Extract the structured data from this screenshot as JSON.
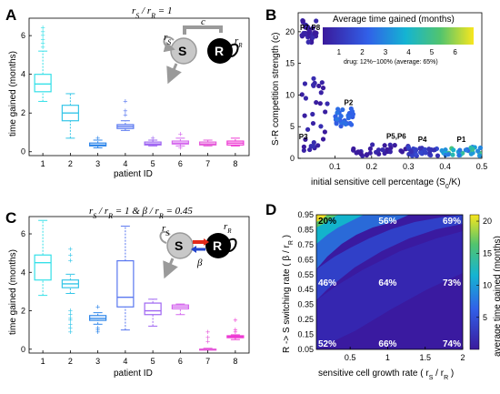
{
  "panel_letters": {
    "a": "A",
    "b": "B",
    "c": "C",
    "d": "D"
  },
  "colors": {
    "P1": "#35e0e8",
    "P2": "#35c6e8",
    "P3": "#2e86ea",
    "P4": "#5a78f0",
    "P5": "#9f66f2",
    "P6": "#d466ee",
    "P7": "#e55ad9",
    "P8": "#ee3ad3"
  },
  "chart_data": [
    {
      "type": "box",
      "panel": "A",
      "title": "r_S / r_R = 1",
      "xlabel": "patient ID",
      "ylabel": "time gained (months)",
      "categories": [
        "1",
        "2",
        "3",
        "4",
        "5",
        "6",
        "7",
        "8"
      ],
      "ylim": [
        -0.2,
        6.9
      ],
      "yticks": [
        0,
        2,
        4,
        6
      ],
      "boxes": [
        {
          "cat": "1",
          "min": 2.6,
          "q1": 3.1,
          "median": 3.5,
          "q3": 4.0,
          "max": 5.2,
          "outliers": [
            5.4,
            5.6,
            5.8,
            6.0,
            6.2,
            6.4
          ]
        },
        {
          "cat": "2",
          "min": 0.7,
          "q1": 1.6,
          "median": 2.0,
          "q3": 2.4,
          "max": 3.0,
          "outliers": []
        },
        {
          "cat": "3",
          "min": 0.2,
          "q1": 0.3,
          "median": 0.35,
          "q3": 0.45,
          "max": 0.6,
          "outliers": [
            0.7
          ]
        },
        {
          "cat": "4",
          "min": 1.1,
          "q1": 1.2,
          "median": 1.3,
          "q3": 1.4,
          "max": 1.6,
          "outliers": [
            1.9,
            2.1,
            2.6
          ]
        },
        {
          "cat": "5",
          "min": 0.3,
          "q1": 0.35,
          "median": 0.4,
          "q3": 0.5,
          "max": 0.6,
          "outliers": [
            0.7
          ]
        },
        {
          "cat": "6",
          "min": 0.3,
          "q1": 0.4,
          "median": 0.45,
          "q3": 0.55,
          "max": 0.7,
          "outliers": [
            0.2,
            0.9
          ]
        },
        {
          "cat": "7",
          "min": 0.3,
          "q1": 0.35,
          "median": 0.4,
          "q3": 0.5,
          "max": 0.6,
          "outliers": []
        },
        {
          "cat": "8",
          "min": 0.3,
          "q1": 0.35,
          "median": 0.45,
          "q3": 0.55,
          "max": 0.7,
          "outliers": []
        }
      ]
    },
    {
      "type": "scatter",
      "panel": "B",
      "xlabel": "initial sensitive cell percentage (S₀/K)",
      "ylabel": "S-R competition strength (c)",
      "xlim": [
        0,
        0.5
      ],
      "ylim": [
        0,
        23
      ],
      "xticks": [
        0.1,
        0.2,
        0.3,
        0.4,
        0.5
      ],
      "yticks": [
        0,
        5,
        10,
        15,
        20
      ],
      "colorbar": {
        "title": "Average time gained (months)",
        "ticks": [
          1,
          2,
          3,
          4,
          5,
          6
        ],
        "range": [
          0.3,
          6.8
        ]
      },
      "note": "drug: 12%~100% (average: 65%)",
      "clusters": [
        {
          "label": "P7-P8",
          "x": [
            0.01,
            0.05
          ],
          "y": [
            18,
            22
          ],
          "value": 0.4
        },
        {
          "label": "P3",
          "x": [
            0.01,
            0.08
          ],
          "y": [
            1,
            13
          ],
          "value": 0.5
        },
        {
          "label": "P2",
          "x": [
            0.1,
            0.15
          ],
          "y": [
            5,
            8
          ],
          "value": 2.4
        },
        {
          "label": "P5,P6",
          "x": [
            0.15,
            0.3
          ],
          "y": [
            0.4,
            2.2
          ],
          "value": 0.4
        },
        {
          "label": "P4",
          "x": [
            0.3,
            0.38
          ],
          "y": [
            0.4,
            1.8
          ],
          "value": 1.3
        },
        {
          "label": "P1",
          "x": [
            0.38,
            0.5
          ],
          "y": [
            0.4,
            1.8
          ],
          "value": 3.8
        }
      ]
    },
    {
      "type": "box",
      "panel": "C",
      "title": "r_S / r_R = 1 & β / r_R = 0.45",
      "xlabel": "patient ID",
      "ylabel": "time gained (months)",
      "categories": [
        "1",
        "2",
        "3",
        "4",
        "5",
        "6",
        "7",
        "8"
      ],
      "ylim": [
        -0.2,
        6.9
      ],
      "yticks": [
        0,
        2,
        4,
        6
      ],
      "boxes": [
        {
          "cat": "1",
          "min": 2.8,
          "q1": 3.6,
          "median": 4.5,
          "q3": 4.9,
          "max": 6.7,
          "outliers": []
        },
        {
          "cat": "2",
          "min": 2.9,
          "q1": 3.2,
          "median": 3.4,
          "q3": 3.6,
          "max": 3.9,
          "outliers": [
            2.0,
            1.8,
            1.6,
            1.5,
            1.3,
            1.1,
            0.9,
            4.6,
            4.9,
            5.2
          ]
        },
        {
          "cat": "3",
          "min": 1.3,
          "q1": 1.5,
          "median": 1.6,
          "q3": 1.75,
          "max": 1.9,
          "outliers": [
            0.9,
            1.0,
            1.1,
            2.2
          ]
        },
        {
          "cat": "4",
          "min": 1.0,
          "q1": 2.2,
          "median": 2.7,
          "q3": 4.6,
          "max": 6.4,
          "outliers": []
        },
        {
          "cat": "5",
          "min": 1.2,
          "q1": 1.8,
          "median": 2.0,
          "q3": 2.4,
          "max": 2.6,
          "outliers": []
        },
        {
          "cat": "6",
          "min": 1.8,
          "q1": 2.1,
          "median": 2.2,
          "q3": 2.3,
          "max": 2.35,
          "outliers": []
        },
        {
          "cat": "7",
          "min": 0.0,
          "q1": 0.0,
          "median": 0.0,
          "q3": 0.0,
          "max": 0.05,
          "outliers": [
            0.4,
            0.6,
            0.9
          ]
        },
        {
          "cat": "8",
          "min": 0.5,
          "q1": 0.6,
          "median": 0.65,
          "q3": 0.7,
          "max": 0.75,
          "outliers": [
            0.9,
            1.0,
            1.5
          ]
        }
      ]
    },
    {
      "type": "heatmap",
      "panel": "D",
      "xlabel": "sensitive cell growth rate ( r_S / r_R )",
      "ylabel": "R -> S switching rate ( β / r_R )",
      "xlim": [
        0.05,
        2.0
      ],
      "ylim": [
        0.05,
        0.95
      ],
      "xticks": [
        0.5,
        1,
        1.5,
        2
      ],
      "yticks": [
        0.05,
        0.15,
        0.25,
        0.35,
        0.45,
        0.55,
        0.65,
        0.75,
        0.85,
        0.95
      ],
      "colorbar": {
        "title": "average time gained (months)",
        "ticks": [
          5,
          10,
          15,
          20
        ],
        "range": [
          0,
          21
        ]
      },
      "cell_labels": [
        {
          "x": 0.1,
          "y": 0.95,
          "text": "20%"
        },
        {
          "x": 1.0,
          "y": 0.95,
          "text": "56%"
        },
        {
          "x": 1.9,
          "y": 0.95,
          "text": "69%"
        },
        {
          "x": 0.1,
          "y": 0.5,
          "text": "46%"
        },
        {
          "x": 1.0,
          "y": 0.5,
          "text": "64%"
        },
        {
          "x": 1.9,
          "y": 0.5,
          "text": "73%"
        },
        {
          "x": 0.1,
          "y": 0.05,
          "text": "52%"
        },
        {
          "x": 1.0,
          "y": 0.05,
          "text": "66%"
        },
        {
          "x": 1.9,
          "y": 0.05,
          "text": "74%"
        }
      ]
    }
  ]
}
